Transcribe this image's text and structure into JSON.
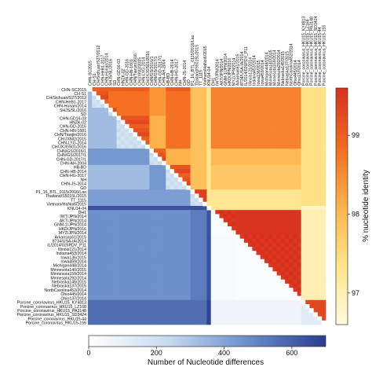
{
  "chart_data": {
    "type": "heatmap",
    "title": "",
    "taxa": [
      "CHN-SC2015",
      "CH-S1",
      "CH/Sichuan/S27/2012",
      "CHN-HeB1-2017",
      "CHN-Hunan/2014",
      "SHJS/SL/2016",
      "SD",
      "CHN-GD16-03",
      "HNZK-02",
      "CHN-GD-2016",
      "CHN-HN-1601",
      "CHN/Tianjin/2016",
      "CH/JXNI2/2015",
      "CHN-LYG-2014",
      "CH/JXJGS01/2016",
      "CHN/GS/2016/1",
      "CHN/GS/2017/1",
      "CHN-GD-2017/1",
      "CHN-AH-2004",
      "HB-BD",
      "CHN-HB-2014",
      "CHN-HG-2017",
      "NH",
      "CHN-JS-2014",
      "GD",
      "P1_16_BTL_0115/2016/Lao",
      "Thailand/S5015L/2015",
      "TT_1115",
      "Vietnam/HaNoi6/2015",
      "KNU14-04",
      "DH1",
      "IWT/JPN/2014",
      "AKT/JPN/2014",
      "GNM-1/JPN/2014",
      "HKD/JPN/2016",
      "MYZ/JPN/2014",
      "Arkansas61/2015",
      "8734/USA-IA/2014",
      "IL/2014/026PDV_P11",
      "Illinois121/2014",
      "Indiana453/2014",
      "Iowa136/2015",
      "Iowa459/2014",
      "Michigan448/2014",
      "Minnesota140/2015",
      "Minnesota159/2014",
      "Minnesota292/2014",
      "Nebraska145/2015",
      "Nebraska137/2015",
      "NorthCarolina452/2014",
      "Ohio445/2014",
      "Ohio137/2014",
      "Porcine_coronavirus_HKU15_KY4813",
      "Porcine_coronavirus_HKU15_LZ168",
      "Porcine_coronavirus_HKU15_PA3148",
      "Porcine_coronavirus_HKU15_SD3424",
      "Porcine_coronavirus_HKU15-44",
      "Porcine_coronavirus_HKU15-155"
    ],
    "top_taxa": [
      "CHN-SC2015",
      "CH-S1",
      "CH/Sichuan/S27/2012",
      "CHN-HeB1-2017",
      "CHN-Hunan/2014",
      "SHJS/SL/2016",
      "SD",
      "CHN-GD16-03",
      "HNZK-02",
      "CHN-GD-2016",
      "CHN-HN-1601",
      "CHN/Tianjin/2016",
      "CH/JXNI2/2015",
      "CHN-LYG-2014",
      "CH/JXJGS01/2016",
      "CHN/GS/2016/1",
      "CHN/GS/2017/1",
      "CHN-GD-2017/1",
      "CHN-AH-2004",
      "HB-BD",
      "CHN-HB-2014",
      "CHN-HG-2017",
      "NH",
      "CHN-JS-2014",
      "GD",
      "P1_16_BTL_0115/2016/Lao",
      "Thailand/S5015L/2015",
      "TT_1115",
      "Vietnam/HaNoi6/2015",
      "KNU14-04",
      "DH1",
      "IWT/JPN/2014",
      "AKT/JPN/2014",
      "GNM-1/JPN/2014",
      "HKD/JPN/2016",
      "MYZ/JPN/2014",
      "Arkansas61/2015",
      "8734/USA-IA/2014",
      "IL/2014/026PDV_P11",
      "Illinois121/2014",
      "Indiana453/2014",
      "Iowa136/2015",
      "Iowa459/2014",
      "Michigan448/2014",
      "Minnesota140/2015",
      "Minnesota159/2014",
      "Minnesota292/2014",
      "Nebraska145/2015",
      "Nebraska137/2015",
      "NorthCarolina452/2014",
      "Ohio445/2014",
      "Ohio137/2014",
      "Porcine_coronavirus_HKU15_KY4813",
      "Porcine_coronavirus_HKU15_LZ168",
      "Porcine_coronavirus_HKU15_PA3148",
      "Porcine_coronavirus_HKU15_SD3424",
      "Porcine_coronavirus_HKU15-44",
      "Porcine_coronavirus_HKU15-155"
    ],
    "groups": [
      {
        "start": 0,
        "end": 0,
        "tag": "sc"
      },
      {
        "start": 1,
        "end": 4,
        "tag": "cnA"
      },
      {
        "start": 5,
        "end": 6,
        "tag": "cnB"
      },
      {
        "start": 7,
        "end": 14,
        "tag": "cnC"
      },
      {
        "start": 15,
        "end": 18,
        "tag": "cnD"
      },
      {
        "start": 19,
        "end": 24,
        "tag": "cnE"
      },
      {
        "start": 25,
        "end": 28,
        "tag": "sea"
      },
      {
        "start": 29,
        "end": 29,
        "tag": "knu"
      },
      {
        "start": 30,
        "end": 35,
        "tag": "jpn"
      },
      {
        "start": 36,
        "end": 51,
        "tag": "usa"
      },
      {
        "start": 52,
        "end": 57,
        "tag": "hku"
      }
    ],
    "color_scales": {
      "upper": {
        "label": "% nucleotide identity",
        "range": [
          96.6,
          99.6
        ],
        "ticks": [
          97,
          98,
          99
        ],
        "colors": [
          "#fffbe0",
          "#ffe58a",
          "#fdb24a",
          "#f36b1f",
          "#d7301f"
        ]
      },
      "lower": {
        "label": "Number of Nucleotide differences",
        "range": [
          0,
          700
        ],
        "ticks": [
          0,
          200,
          400,
          600
        ],
        "colors": [
          "#ffffff",
          "#c6dbef",
          "#6b8fcb",
          "#2a3d8f"
        ]
      }
    },
    "grid": false
  }
}
